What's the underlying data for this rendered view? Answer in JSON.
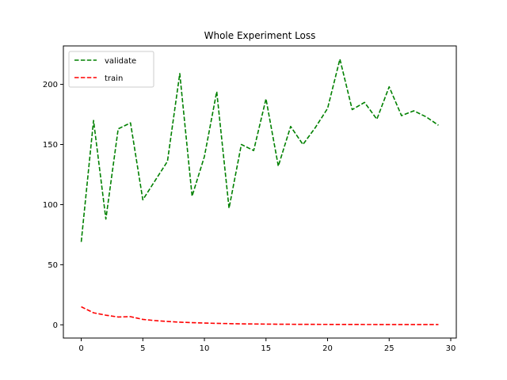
{
  "chart_data": {
    "type": "line",
    "title": "Whole Experiment Loss",
    "xlabel": "",
    "ylabel": "",
    "xlim": [
      -1.45,
      30.45
    ],
    "ylim": [
      -11,
      232
    ],
    "xticks": [
      0,
      5,
      10,
      15,
      20,
      25,
      30
    ],
    "yticks": [
      0,
      50,
      100,
      150,
      200
    ],
    "grid": false,
    "legend_position": "upper left",
    "x": [
      0,
      1,
      2,
      3,
      4,
      5,
      6,
      7,
      8,
      9,
      10,
      11,
      12,
      13,
      14,
      15,
      16,
      17,
      18,
      19,
      20,
      21,
      22,
      23,
      24,
      25,
      26,
      27,
      28,
      29
    ],
    "series": [
      {
        "name": "validate",
        "color": "#008000",
        "line_style": "dashed",
        "values": [
          69,
          170,
          88,
          163,
          168,
          104,
          120,
          136,
          209,
          107,
          140,
          194,
          97,
          150,
          145,
          188,
          132,
          165,
          150,
          164,
          180,
          221,
          179,
          185,
          171,
          198,
          174,
          178,
          173,
          166
        ]
      },
      {
        "name": "train",
        "color": "#ff0000",
        "line_style": "dashed",
        "values": [
          15,
          10,
          8,
          6.5,
          6.8,
          4.5,
          3.5,
          2.8,
          2.2,
          1.8,
          1.5,
          1.2,
          1.0,
          0.8,
          0.7,
          0.6,
          0.5,
          0.45,
          0.4,
          0.38,
          0.35,
          0.33,
          0.3,
          0.28,
          0.27,
          0.25,
          0.24,
          0.23,
          0.22,
          0.21
        ]
      }
    ]
  }
}
